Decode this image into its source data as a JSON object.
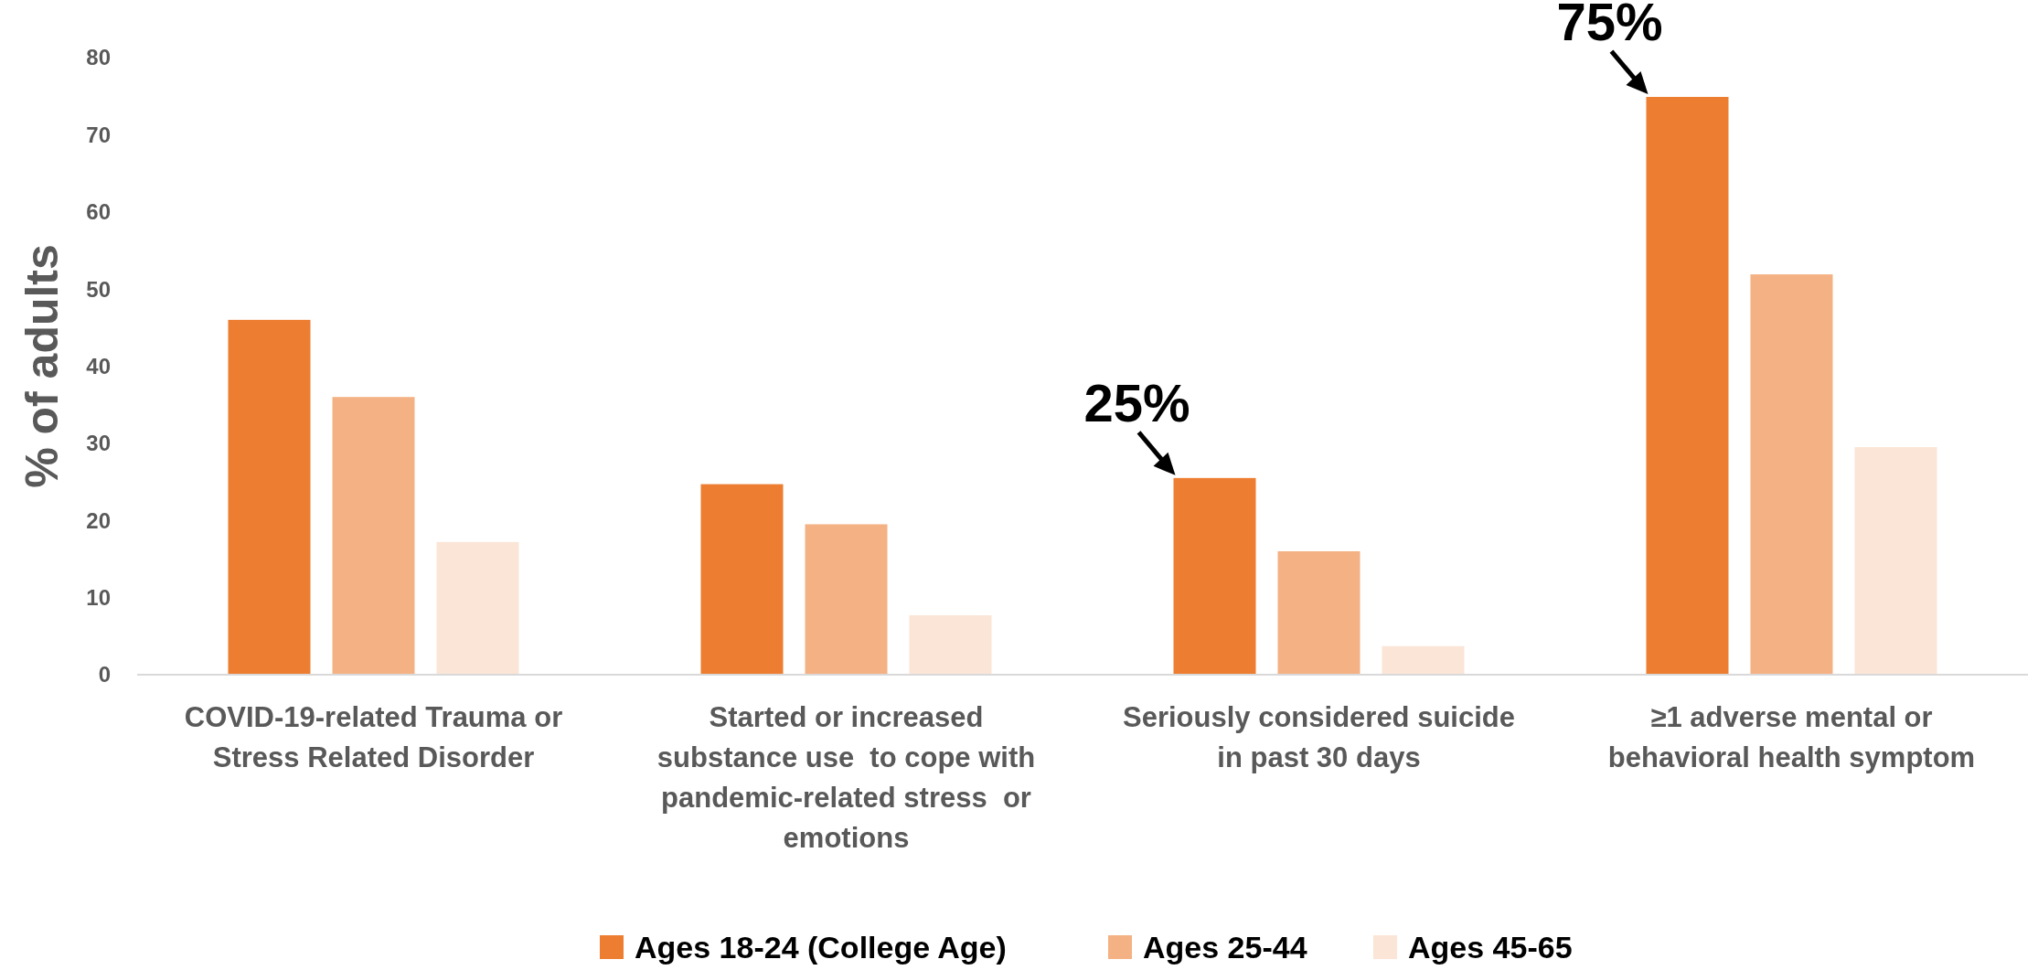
{
  "chart_data": {
    "type": "bar",
    "ylabel": "% of adults",
    "categories": [
      "COVID-19-related Trauma or Stress Related Disorder",
      "Started or increased substance use  to cope with pandemic-related stress  or emotions",
      "Seriously considered suicide in past 30 days",
      "≥1 adverse mental or behavioral health symptom"
    ],
    "series": [
      {
        "name": "Ages 18-24 (College Age)",
        "color": "#ed7d31",
        "values": [
          46.0,
          24.7,
          25.5,
          74.9
        ]
      },
      {
        "name": "Ages 25-44",
        "color": "#f4b183",
        "values": [
          36.0,
          19.5,
          16.0,
          51.9
        ]
      },
      {
        "name": "Ages 45-65",
        "color": "#fbe5d6",
        "values": [
          17.2,
          7.7,
          3.7,
          29.5
        ]
      }
    ],
    "ylim": [
      0,
      80
    ],
    "yticks": [
      0,
      10,
      20,
      30,
      40,
      50,
      60,
      70,
      80
    ],
    "grid": false,
    "legend": "bottom",
    "annotations": [
      "25%",
      "75%"
    ]
  }
}
